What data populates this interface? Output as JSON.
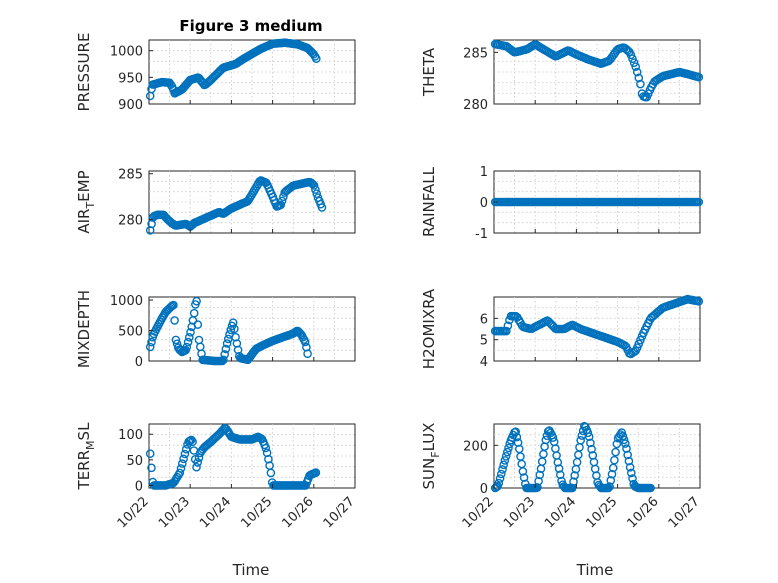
{
  "figure_title": "Figure 3 medium",
  "x_axis_label": "Time",
  "x_tick_labels": [
    "10/22",
    "10/23",
    "10/24",
    "10/25",
    "10/26",
    "10/27"
  ],
  "colors": {
    "marker": "#0072BD",
    "axes": "#262626",
    "grid": "#c8c8c8"
  },
  "chart_data": [
    {
      "type": "scatter",
      "panel": "pressure",
      "title": "Figure 3 medium",
      "ylabel": "PRESSURE",
      "xlabel": "",
      "xlim": [
        0,
        5
      ],
      "ylim": [
        900,
        1020
      ],
      "yticks": [
        900,
        950,
        1000
      ],
      "ytick_labels": [
        "900",
        "950",
        "1000"
      ],
      "grid": true,
      "keypoints": [
        [
          0.03,
          915
        ],
        [
          0.08,
          936
        ],
        [
          0.3,
          941
        ],
        [
          0.5,
          940
        ],
        [
          0.58,
          930
        ],
        [
          0.62,
          920
        ],
        [
          0.8,
          927
        ],
        [
          1.0,
          945
        ],
        [
          1.2,
          950
        ],
        [
          1.35,
          935
        ],
        [
          1.5,
          945
        ],
        [
          1.8,
          968
        ],
        [
          2.1,
          975
        ],
        [
          2.3,
          985
        ],
        [
          2.7,
          1003
        ],
        [
          3.0,
          1013
        ],
        [
          3.3,
          1015
        ],
        [
          3.6,
          1012
        ],
        [
          3.85,
          1005
        ],
        [
          4.0,
          993
        ],
        [
          4.06,
          985
        ]
      ]
    },
    {
      "type": "scatter",
      "panel": "theta",
      "ylabel": "THETA",
      "xlim": [
        0,
        5
      ],
      "ylim": [
        280,
        286.2
      ],
      "yticks": [
        280,
        285
      ],
      "ytick_labels": [
        "280",
        "285"
      ],
      "grid": true,
      "keypoints": [
        [
          0.03,
          285.8
        ],
        [
          0.3,
          285.6
        ],
        [
          0.5,
          285.0
        ],
        [
          0.8,
          285.3
        ],
        [
          1.0,
          285.8
        ],
        [
          1.2,
          285.3
        ],
        [
          1.5,
          284.6
        ],
        [
          1.8,
          285.2
        ],
        [
          2.0,
          284.8
        ],
        [
          2.3,
          284.3
        ],
        [
          2.6,
          283.9
        ],
        [
          2.8,
          284.2
        ],
        [
          3.0,
          285.3
        ],
        [
          3.15,
          285.5
        ],
        [
          3.3,
          285.0
        ],
        [
          3.45,
          283.5
        ],
        [
          3.55,
          282.0
        ],
        [
          3.6,
          280.8
        ],
        [
          3.7,
          280.6
        ],
        [
          3.8,
          281.5
        ],
        [
          3.9,
          282.2
        ],
        [
          4.1,
          282.7
        ],
        [
          4.3,
          282.9
        ],
        [
          4.5,
          283.1
        ],
        [
          4.7,
          282.9
        ],
        [
          4.97,
          282.6
        ]
      ]
    },
    {
      "type": "scatter",
      "panel": "air_temp",
      "ylabel": "AIR",
      "ylabel_sub": "T",
      "ylabel_rest": "EMP",
      "xlim": [
        0,
        5
      ],
      "ylim": [
        278.5,
        285.3
      ],
      "yticks": [
        280,
        285
      ],
      "ytick_labels": [
        "280",
        "285"
      ],
      "grid": true,
      "keypoints": [
        [
          0.03,
          278.8
        ],
        [
          0.1,
          280.3
        ],
        [
          0.2,
          280.5
        ],
        [
          0.35,
          280.5
        ],
        [
          0.45,
          280.0
        ],
        [
          0.55,
          279.6
        ],
        [
          0.65,
          279.3
        ],
        [
          0.75,
          279.4
        ],
        [
          0.9,
          279.5
        ],
        [
          1.0,
          279.2
        ],
        [
          1.1,
          279.6
        ],
        [
          1.3,
          280.0
        ],
        [
          1.5,
          280.4
        ],
        [
          1.7,
          280.8
        ],
        [
          1.8,
          280.6
        ],
        [
          2.0,
          281.2
        ],
        [
          2.2,
          281.6
        ],
        [
          2.4,
          282.0
        ],
        [
          2.6,
          283.5
        ],
        [
          2.7,
          284.3
        ],
        [
          2.85,
          284.0
        ],
        [
          3.0,
          282.5
        ],
        [
          3.1,
          281.4
        ],
        [
          3.2,
          281.6
        ],
        [
          3.3,
          283.0
        ],
        [
          3.5,
          283.7
        ],
        [
          3.7,
          283.9
        ],
        [
          3.9,
          284.1
        ],
        [
          4.0,
          283.8
        ],
        [
          4.1,
          282.4
        ],
        [
          4.2,
          281.3
        ]
      ]
    },
    {
      "type": "scatter",
      "panel": "rainfall",
      "ylabel": "RAINFALL",
      "xlim": [
        0,
        5
      ],
      "ylim": [
        -1,
        1
      ],
      "yticks": [
        -1,
        0,
        1
      ],
      "ytick_labels": [
        "-1",
        "0",
        "1"
      ],
      "grid": true,
      "keypoints": [
        [
          0.03,
          0
        ],
        [
          4.97,
          0
        ]
      ]
    },
    {
      "type": "scatter",
      "panel": "mixdepth",
      "ylabel": "MIXDEPTH",
      "xlim": [
        0,
        5
      ],
      "ylim": [
        0,
        1050
      ],
      "yticks": [
        0,
        500,
        1000
      ],
      "ytick_labels": [
        "0",
        "500",
        "1000"
      ],
      "grid": true,
      "keypoints": [
        [
          0.03,
          230
        ],
        [
          0.1,
          420
        ],
        [
          0.25,
          620
        ],
        [
          0.4,
          800
        ],
        [
          0.55,
          900
        ],
        [
          0.6,
          920
        ],
        [
          0.65,
          350
        ],
        [
          0.72,
          200
        ],
        [
          0.8,
          150
        ],
        [
          0.9,
          180
        ],
        [
          1.0,
          450
        ],
        [
          1.05,
          600
        ],
        [
          1.1,
          800
        ],
        [
          1.15,
          1050
        ],
        [
          1.2,
          400
        ],
        [
          1.3,
          20
        ],
        [
          1.6,
          0
        ],
        [
          1.8,
          0
        ],
        [
          1.9,
          300
        ],
        [
          2.0,
          550
        ],
        [
          2.05,
          640
        ],
        [
          2.1,
          400
        ],
        [
          2.2,
          50
        ],
        [
          2.4,
          20
        ],
        [
          2.6,
          200
        ],
        [
          2.8,
          270
        ],
        [
          3.0,
          330
        ],
        [
          3.2,
          380
        ],
        [
          3.5,
          450
        ],
        [
          3.6,
          500
        ],
        [
          3.7,
          430
        ],
        [
          3.8,
          300
        ],
        [
          3.85,
          120
        ]
      ]
    },
    {
      "type": "scatter",
      "panel": "h2omixra",
      "ylabel": "H2OMIXRA",
      "xlim": [
        0,
        5
      ],
      "ylim": [
        4,
        7
      ],
      "yticks": [
        4,
        5,
        6
      ],
      "ytick_labels": [
        "4",
        "5",
        "6"
      ],
      "grid": true,
      "keypoints": [
        [
          0.03,
          5.4
        ],
        [
          0.3,
          5.4
        ],
        [
          0.4,
          6.1
        ],
        [
          0.55,
          6.1
        ],
        [
          0.7,
          5.6
        ],
        [
          0.9,
          5.5
        ],
        [
          1.1,
          5.7
        ],
        [
          1.3,
          5.9
        ],
        [
          1.5,
          5.5
        ],
        [
          1.7,
          5.5
        ],
        [
          1.9,
          5.7
        ],
        [
          2.1,
          5.5
        ],
        [
          2.4,
          5.3
        ],
        [
          2.7,
          5.1
        ],
        [
          3.0,
          4.9
        ],
        [
          3.2,
          4.7
        ],
        [
          3.3,
          4.3
        ],
        [
          3.45,
          4.5
        ],
        [
          3.6,
          5.2
        ],
        [
          3.8,
          6.0
        ],
        [
          4.1,
          6.5
        ],
        [
          4.4,
          6.7
        ],
        [
          4.7,
          6.9
        ],
        [
          4.97,
          6.8
        ]
      ]
    },
    {
      "type": "scatter",
      "panel": "terr_msl",
      "ylabel": "TERR",
      "ylabel_sub": "M",
      "ylabel_rest": "SL",
      "xlim": [
        0,
        5
      ],
      "ylim": [
        -5,
        120
      ],
      "yticks": [
        0,
        50,
        100
      ],
      "ytick_labels": [
        "0",
        "50",
        "100"
      ],
      "grid": true,
      "keypoints": [
        [
          0.03,
          62
        ],
        [
          0.1,
          0
        ],
        [
          0.4,
          0
        ],
        [
          0.6,
          5
        ],
        [
          0.75,
          25
        ],
        [
          0.85,
          55
        ],
        [
          0.95,
          85
        ],
        [
          1.05,
          90
        ],
        [
          1.15,
          35
        ],
        [
          1.25,
          65
        ],
        [
          1.35,
          75
        ],
        [
          1.5,
          85
        ],
        [
          1.7,
          100
        ],
        [
          1.85,
          113
        ],
        [
          2.0,
          95
        ],
        [
          2.2,
          90
        ],
        [
          2.5,
          90
        ],
        [
          2.65,
          95
        ],
        [
          2.75,
          90
        ],
        [
          2.85,
          70
        ],
        [
          2.95,
          30
        ],
        [
          3.0,
          0
        ],
        [
          3.5,
          0
        ],
        [
          3.8,
          0
        ],
        [
          3.9,
          20
        ],
        [
          4.05,
          25
        ]
      ]
    },
    {
      "type": "scatter",
      "panel": "sun_flux",
      "ylabel": "SUN",
      "ylabel_sub": "F",
      "ylabel_rest": "LUX",
      "xlim": [
        0,
        5
      ],
      "ylim": [
        0,
        300
      ],
      "yticks": [
        0,
        200
      ],
      "ytick_labels": [
        "0",
        "200"
      ],
      "grid": true,
      "keypoints": [
        [
          0.03,
          0
        ],
        [
          0.1,
          10
        ],
        [
          0.25,
          120
        ],
        [
          0.4,
          220
        ],
        [
          0.52,
          270
        ],
        [
          0.6,
          200
        ],
        [
          0.7,
          80
        ],
        [
          0.78,
          0
        ],
        [
          1.05,
          0
        ],
        [
          1.15,
          100
        ],
        [
          1.25,
          220
        ],
        [
          1.33,
          275
        ],
        [
          1.45,
          230
        ],
        [
          1.55,
          120
        ],
        [
          1.65,
          20
        ],
        [
          1.72,
          0
        ],
        [
          1.9,
          0
        ],
        [
          2.0,
          100
        ],
        [
          2.1,
          220
        ],
        [
          2.2,
          295
        ],
        [
          2.3,
          250
        ],
        [
          2.4,
          150
        ],
        [
          2.52,
          20
        ],
        [
          2.6,
          0
        ],
        [
          2.8,
          0
        ],
        [
          2.9,
          100
        ],
        [
          3.0,
          230
        ],
        [
          3.1,
          260
        ],
        [
          3.2,
          200
        ],
        [
          3.3,
          100
        ],
        [
          3.4,
          10
        ],
        [
          3.5,
          0
        ],
        [
          3.8,
          0
        ]
      ]
    }
  ]
}
